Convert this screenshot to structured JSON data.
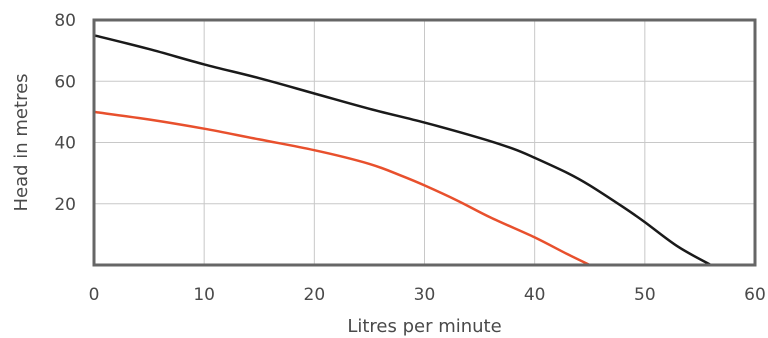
{
  "chart_data": {
    "type": "line",
    "xlabel": "Litres per minute",
    "ylabel": "Head in metres",
    "xlim": [
      0,
      60
    ],
    "ylim": [
      0,
      80
    ],
    "x_ticks": [
      0,
      10,
      20,
      30,
      40,
      50,
      60
    ],
    "y_ticks": [
      20,
      40,
      60,
      80
    ],
    "grid": true,
    "series": [
      {
        "color": "#1a1a1a",
        "points": [
          [
            0,
            75
          ],
          [
            5,
            70.5
          ],
          [
            10,
            65.5
          ],
          [
            15,
            61
          ],
          [
            20,
            56
          ],
          [
            25,
            51
          ],
          [
            30,
            46.5
          ],
          [
            35,
            41.5
          ],
          [
            38,
            38
          ],
          [
            40,
            35
          ],
          [
            43,
            30
          ],
          [
            45,
            26
          ],
          [
            48,
            19
          ],
          [
            50,
            14
          ],
          [
            53,
            6
          ],
          [
            56,
            0
          ]
        ]
      },
      {
        "color": "#e8502d",
        "points": [
          [
            0,
            50
          ],
          [
            5,
            47.5
          ],
          [
            10,
            44.5
          ],
          [
            15,
            41
          ],
          [
            20,
            37.5
          ],
          [
            25,
            33
          ],
          [
            28,
            29
          ],
          [
            30,
            26
          ],
          [
            33,
            21
          ],
          [
            36,
            15.5
          ],
          [
            40,
            9
          ],
          [
            43,
            3.5
          ],
          [
            45,
            0
          ]
        ]
      }
    ]
  }
}
